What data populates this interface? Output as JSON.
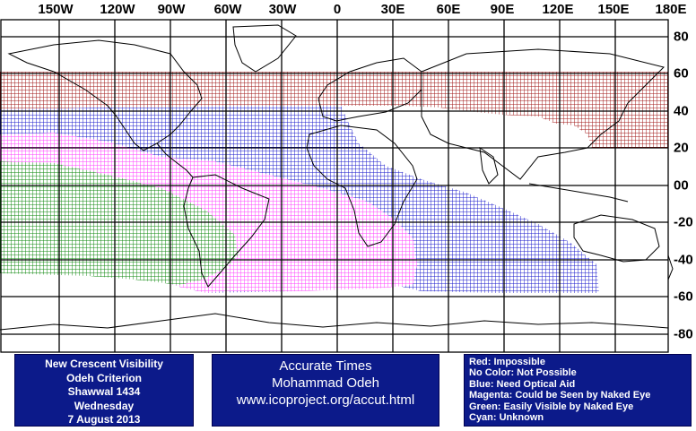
{
  "map": {
    "lon_labels": [
      "150W",
      "120W",
      "90W",
      "60W",
      "30W",
      "0",
      "30E",
      "60E",
      "90E",
      "120E",
      "150E",
      "180E"
    ],
    "lat_labels": [
      "80",
      "60",
      "40",
      "20",
      "00",
      "-20",
      "-40",
      "-60",
      "-80"
    ],
    "colors": {
      "impossible": "#a01818",
      "optical_aid": "#1c1ccc",
      "naked_eye_maybe": "#ff40ff",
      "easily_visible": "#108a10",
      "grid": "#000000",
      "coast": "#000000"
    },
    "zones": [
      {
        "name": "impossible",
        "lat_from": 60,
        "lat_to": 20
      },
      {
        "name": "optical_aid",
        "lat_from": 40,
        "lat_to": -60
      },
      {
        "name": "naked_eye_maybe",
        "lat_from": 30,
        "lat_to": -55
      },
      {
        "name": "easily_visible",
        "lat_from": 13,
        "lat_to": -50
      }
    ]
  },
  "info": {
    "title_lines": [
      "New Crescent Visibility",
      "Odeh Criterion",
      "Shawwal 1434",
      "Wednesday",
      "7 August 2013"
    ],
    "times_lines": [
      "Accurate Times",
      "Mohammad Odeh",
      "www.icoproject.org/accut.html"
    ],
    "legend_lines": [
      "Red: Impossible",
      "No Color: Not Possible",
      "Blue: Need Optical Aid",
      "Magenta: Could be Seen by Naked Eye",
      "Green: Easily Visible by Naked Eye",
      "Cyan: Unknown"
    ]
  }
}
